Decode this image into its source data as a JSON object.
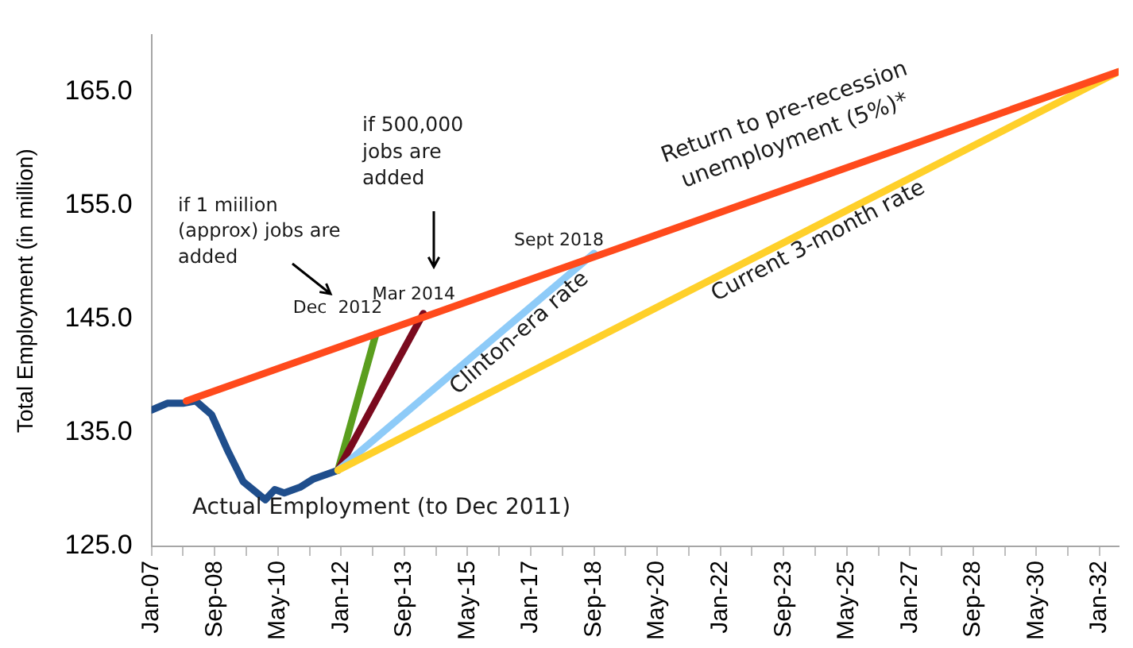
{
  "chart_data": {
    "type": "line",
    "ylabel": "Total Employment (in million)",
    "xlim": [
      "2007-01",
      "2032-07"
    ],
    "ylim": [
      125,
      170
    ],
    "xticks": [
      {
        "value": "2007-01",
        "label": "Jan-07"
      },
      {
        "value": "2007-11",
        "label": null
      },
      {
        "value": "2008-09",
        "label": "Sep-08"
      },
      {
        "value": "2009-07",
        "label": null
      },
      {
        "value": "2010-05",
        "label": "May-10"
      },
      {
        "value": "2011-03",
        "label": null
      },
      {
        "value": "2012-01",
        "label": "Jan-12"
      },
      {
        "value": "2012-11",
        "label": null
      },
      {
        "value": "2013-09",
        "label": "Sep-13"
      },
      {
        "value": "2014-07",
        "label": null
      },
      {
        "value": "2015-05",
        "label": "May-15"
      },
      {
        "value": "2016-03",
        "label": null
      },
      {
        "value": "2017-01",
        "label": "Jan-17"
      },
      {
        "value": "2017-11",
        "label": null
      },
      {
        "value": "2018-09",
        "label": "Sep-18"
      },
      {
        "value": "2019-07",
        "label": null
      },
      {
        "value": "2020-05",
        "label": "May-20"
      },
      {
        "value": "2021-03",
        "label": null
      },
      {
        "value": "2022-01",
        "label": "Jan-22"
      },
      {
        "value": "2022-11",
        "label": null
      },
      {
        "value": "2023-09",
        "label": "Sep-23"
      },
      {
        "value": "2024-07",
        "label": null
      },
      {
        "value": "2025-05",
        "label": "May-25"
      },
      {
        "value": "2026-03",
        "label": null
      },
      {
        "value": "2027-01",
        "label": "Jan-27"
      },
      {
        "value": "2027-11",
        "label": null
      },
      {
        "value": "2028-09",
        "label": "Sep-28"
      },
      {
        "value": "2029-07",
        "label": null
      },
      {
        "value": "2030-05",
        "label": "May-30"
      },
      {
        "value": "2031-03",
        "label": null
      },
      {
        "value": "2032-01",
        "label": "Jan-32"
      }
    ],
    "yticks": [
      {
        "value": 125,
        "label": "125.0"
      },
      {
        "value": 135,
        "label": "135.0"
      },
      {
        "value": 145,
        "label": "145.0"
      },
      {
        "value": 155,
        "label": "155.0"
      },
      {
        "value": 165,
        "label": "165.0"
      }
    ],
    "grid": false,
    "legend": false,
    "marker": "none",
    "line_style": "solid",
    "series": [
      {
        "color": "#ff4a1c",
        "x": [
          "2007-12",
          "2032-07"
        ],
        "values": [
          137.8,
          166.8
        ]
      },
      {
        "color": "#ffd02a",
        "x": [
          "2011-12",
          "2032-07"
        ],
        "values": [
          131.7,
          166.8
        ]
      },
      {
        "color": "#8ecbf8",
        "x": [
          "2011-12",
          "2018-09"
        ],
        "values": [
          131.7,
          150.8
        ]
      },
      {
        "color": "#7a0a1e",
        "x": [
          "2011-12",
          "2014-03"
        ],
        "values": [
          131.7,
          145.5
        ]
      },
      {
        "color": "#5a9e1e",
        "x": [
          "2011-12",
          "2012-12"
        ],
        "values": [
          131.7,
          143.7
        ]
      },
      {
        "color": "#1f4e8c",
        "x": [
          "2007-01",
          "2007-06",
          "2007-11",
          "2008-03",
          "2008-08",
          "2009-01",
          "2009-06",
          "2010-01",
          "2010-04",
          "2010-07",
          "2010-12",
          "2011-04",
          "2011-12"
        ],
        "values": [
          137.0,
          137.6,
          137.6,
          137.8,
          136.6,
          133.5,
          130.7,
          129.1,
          130.0,
          129.7,
          130.2,
          130.9,
          131.7
        ]
      }
    ],
    "annotations": [
      "Return to pre-recession unemployment (5%)*",
      "Current 3-month rate",
      "Clinton-era rate",
      "Actual Employment (to Dec 2011)",
      "if 1 miilion (approx) jobs are added",
      "if 500,000 jobs are added",
      {
        "text": "Dec  2012",
        "x": "2012-12",
        "y": 143.7
      },
      {
        "text": "Mar 2014",
        "x": "2014-03",
        "y": 145.5
      },
      {
        "text": "Sept 2018",
        "x": "2018-09",
        "y": 150.8
      }
    ]
  }
}
